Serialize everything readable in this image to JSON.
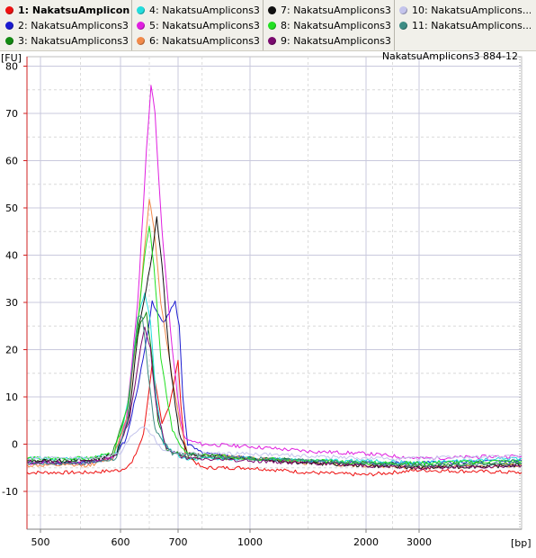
{
  "legend": {
    "items": [
      {
        "label": "1: NakatsuAmplicon...",
        "color": "#ee1111",
        "bold": true
      },
      {
        "label": "2: NakatsuAmplicons3 ...",
        "color": "#1b1bd0",
        "bold": false
      },
      {
        "label": "3: NakatsuAmplicons3 ...",
        "color": "#138a13",
        "bold": false
      },
      {
        "label": "4: NakatsuAmplicons3 ...",
        "color": "#22dddd",
        "bold": false
      },
      {
        "label": "5: NakatsuAmplicons3 ...",
        "color": "#e020e0",
        "bold": false
      },
      {
        "label": "6: NakatsuAmplicons3 ...",
        "color": "#f28a4a",
        "bold": false
      },
      {
        "label": "7: NakatsuAmplicons3 ...",
        "color": "#111111",
        "bold": false
      },
      {
        "label": "8: NakatsuAmplicons3 ...",
        "color": "#22e022",
        "bold": false
      },
      {
        "label": "9: NakatsuAmplicons3 ...",
        "color": "#7a0a6e",
        "bold": false
      },
      {
        "label": "10: NakatsuAmplicons...",
        "color": "#c4c4ec",
        "bold": false
      },
      {
        "label": "11: NakatsuAmplicons...",
        "color": "#3d8c84",
        "bold": false
      }
    ]
  },
  "chart_data": {
    "type": "line",
    "title": "NakatsuAmplicons3 884-12",
    "ylabel": "[FU]",
    "xlabel": "[bp]",
    "ylim": [
      -18,
      82
    ],
    "yticks": [
      80,
      70,
      60,
      50,
      40,
      30,
      20,
      10,
      0,
      -10
    ],
    "xticks": [
      500,
      600,
      700,
      1000,
      2000,
      3000
    ],
    "xscale": "migration (non-linear bp axis)",
    "grid": true,
    "series": [
      {
        "name": "1: NakatsuAmplicon...",
        "color": "#ee1111",
        "points": [
          [
            480,
            -6
          ],
          [
            560,
            -6
          ],
          [
            600,
            -5.5
          ],
          [
            620,
            -4
          ],
          [
            640,
            2
          ],
          [
            650,
            12
          ],
          [
            655,
            17
          ],
          [
            662,
            12
          ],
          [
            672,
            4
          ],
          [
            685,
            8
          ],
          [
            700,
            18
          ],
          [
            712,
            8
          ],
          [
            730,
            -2
          ],
          [
            800,
            -5
          ],
          [
            1000,
            -5
          ],
          [
            1500,
            -6
          ],
          [
            2000,
            -6.5
          ],
          [
            3000,
            -5.5
          ],
          [
            3400,
            -6
          ]
        ]
      },
      {
        "name": "2: NakatsuAmplicons3 ...",
        "color": "#1b1bd0",
        "points": [
          [
            480,
            -4
          ],
          [
            560,
            -4
          ],
          [
            590,
            -3
          ],
          [
            610,
            1
          ],
          [
            630,
            12
          ],
          [
            645,
            22
          ],
          [
            655,
            30
          ],
          [
            662,
            28
          ],
          [
            675,
            26
          ],
          [
            685,
            28
          ],
          [
            695,
            30
          ],
          [
            705,
            25
          ],
          [
            720,
            10
          ],
          [
            740,
            0
          ],
          [
            800,
            -2
          ],
          [
            1000,
            -3
          ],
          [
            1500,
            -3.5
          ],
          [
            2000,
            -4
          ],
          [
            3000,
            -4
          ],
          [
            3400,
            -3.5
          ]
        ]
      },
      {
        "name": "3: NakatsuAmplicons3 ...",
        "color": "#138a13",
        "points": [
          [
            480,
            -3.5
          ],
          [
            560,
            -3.5
          ],
          [
            590,
            -2
          ],
          [
            612,
            8
          ],
          [
            625,
            20
          ],
          [
            635,
            26
          ],
          [
            645,
            28
          ],
          [
            655,
            18
          ],
          [
            665,
            5
          ],
          [
            680,
            -1
          ],
          [
            750,
            -3
          ],
          [
            1000,
            -3
          ],
          [
            1500,
            -3.5
          ],
          [
            2000,
            -4
          ],
          [
            3000,
            -4.5
          ],
          [
            3400,
            -4
          ]
        ]
      },
      {
        "name": "4: NakatsuAmplicons3 ...",
        "color": "#22dddd",
        "points": [
          [
            480,
            -3
          ],
          [
            560,
            -3
          ],
          [
            595,
            -2
          ],
          [
            615,
            10
          ],
          [
            630,
            27
          ],
          [
            642,
            32
          ],
          [
            652,
            26
          ],
          [
            662,
            10
          ],
          [
            675,
            0
          ],
          [
            720,
            -3
          ],
          [
            1000,
            -3
          ],
          [
            1500,
            -3.5
          ],
          [
            2000,
            -3.5
          ],
          [
            3000,
            -4
          ],
          [
            3400,
            -3
          ]
        ]
      },
      {
        "name": "5: NakatsuAmplicons3 ...",
        "color": "#e020e0",
        "points": [
          [
            480,
            -4
          ],
          [
            560,
            -4
          ],
          [
            590,
            -3
          ],
          [
            610,
            5
          ],
          [
            630,
            30
          ],
          [
            645,
            62
          ],
          [
            653,
            76
          ],
          [
            660,
            70
          ],
          [
            672,
            45
          ],
          [
            690,
            20
          ],
          [
            710,
            5
          ],
          [
            730,
            1
          ],
          [
            800,
            0
          ],
          [
            1000,
            -0.5
          ],
          [
            1500,
            -1.5
          ],
          [
            2000,
            -2
          ],
          [
            3000,
            -3
          ],
          [
            3400,
            -2.5
          ]
        ]
      },
      {
        "name": "6: NakatsuAmplicons3 ...",
        "color": "#f28a4a",
        "points": [
          [
            480,
            -4.5
          ],
          [
            560,
            -4.5
          ],
          [
            590,
            -3
          ],
          [
            612,
            6
          ],
          [
            630,
            25
          ],
          [
            642,
            42
          ],
          [
            650,
            52
          ],
          [
            658,
            46
          ],
          [
            670,
            30
          ],
          [
            690,
            14
          ],
          [
            710,
            4
          ],
          [
            740,
            -2
          ],
          [
            1000,
            -3
          ],
          [
            1500,
            -4
          ],
          [
            2000,
            -4.5
          ],
          [
            3000,
            -5
          ],
          [
            3400,
            -4.5
          ]
        ]
      },
      {
        "name": "7: NakatsuAmplicons3 ...",
        "color": "#111111",
        "points": [
          [
            480,
            -3.5
          ],
          [
            560,
            -3.5
          ],
          [
            595,
            -2
          ],
          [
            615,
            6
          ],
          [
            632,
            25
          ],
          [
            645,
            33
          ],
          [
            655,
            40
          ],
          [
            663,
            48
          ],
          [
            672,
            38
          ],
          [
            685,
            18
          ],
          [
            705,
            2
          ],
          [
            740,
            -2
          ],
          [
            1000,
            -3
          ],
          [
            1500,
            -4
          ],
          [
            2000,
            -4.5
          ],
          [
            3000,
            -5
          ],
          [
            3400,
            -4.5
          ]
        ]
      },
      {
        "name": "8: NakatsuAmplicons3 ...",
        "color": "#22e022",
        "points": [
          [
            480,
            -3
          ],
          [
            560,
            -3
          ],
          [
            592,
            -2
          ],
          [
            612,
            8
          ],
          [
            630,
            25
          ],
          [
            642,
            40
          ],
          [
            650,
            46
          ],
          [
            658,
            38
          ],
          [
            670,
            18
          ],
          [
            690,
            3
          ],
          [
            730,
            -2
          ],
          [
            1000,
            -3
          ],
          [
            1500,
            -3.5
          ],
          [
            2000,
            -4
          ],
          [
            3000,
            -4
          ],
          [
            3400,
            -3.5
          ]
        ]
      },
      {
        "name": "9: NakatsuAmplicons3 ...",
        "color": "#7a0a6e",
        "points": [
          [
            480,
            -3.8
          ],
          [
            560,
            -3.8
          ],
          [
            595,
            -2.5
          ],
          [
            615,
            5
          ],
          [
            632,
            18
          ],
          [
            642,
            25
          ],
          [
            652,
            20
          ],
          [
            662,
            8
          ],
          [
            680,
            -1
          ],
          [
            730,
            -3
          ],
          [
            1000,
            -3.5
          ],
          [
            1500,
            -4
          ],
          [
            2000,
            -4.5
          ],
          [
            3000,
            -5
          ],
          [
            3400,
            -4.5
          ]
        ]
      },
      {
        "name": "10: NakatsuAmplicons...",
        "color": "#c4c4ec",
        "points": [
          [
            480,
            -3
          ],
          [
            560,
            -3
          ],
          [
            600,
            -2
          ],
          [
            620,
            2
          ],
          [
            640,
            4
          ],
          [
            655,
            2
          ],
          [
            670,
            -1
          ],
          [
            720,
            -2
          ],
          [
            1000,
            -2
          ],
          [
            1500,
            -2.5
          ],
          [
            2000,
            -3
          ],
          [
            3000,
            -3
          ],
          [
            3400,
            -2.5
          ]
        ]
      },
      {
        "name": "11: NakatsuAmplicons...",
        "color": "#3d8c84",
        "points": [
          [
            480,
            -4
          ],
          [
            560,
            -4
          ],
          [
            595,
            -3
          ],
          [
            612,
            5
          ],
          [
            622,
            18
          ],
          [
            630,
            27
          ],
          [
            638,
            27
          ],
          [
            648,
            15
          ],
          [
            660,
            3
          ],
          [
            690,
            -2
          ],
          [
            1000,
            -3
          ],
          [
            1500,
            -3.5
          ],
          [
            2000,
            -4
          ],
          [
            3000,
            -4.5
          ],
          [
            3400,
            -4
          ]
        ]
      }
    ]
  }
}
